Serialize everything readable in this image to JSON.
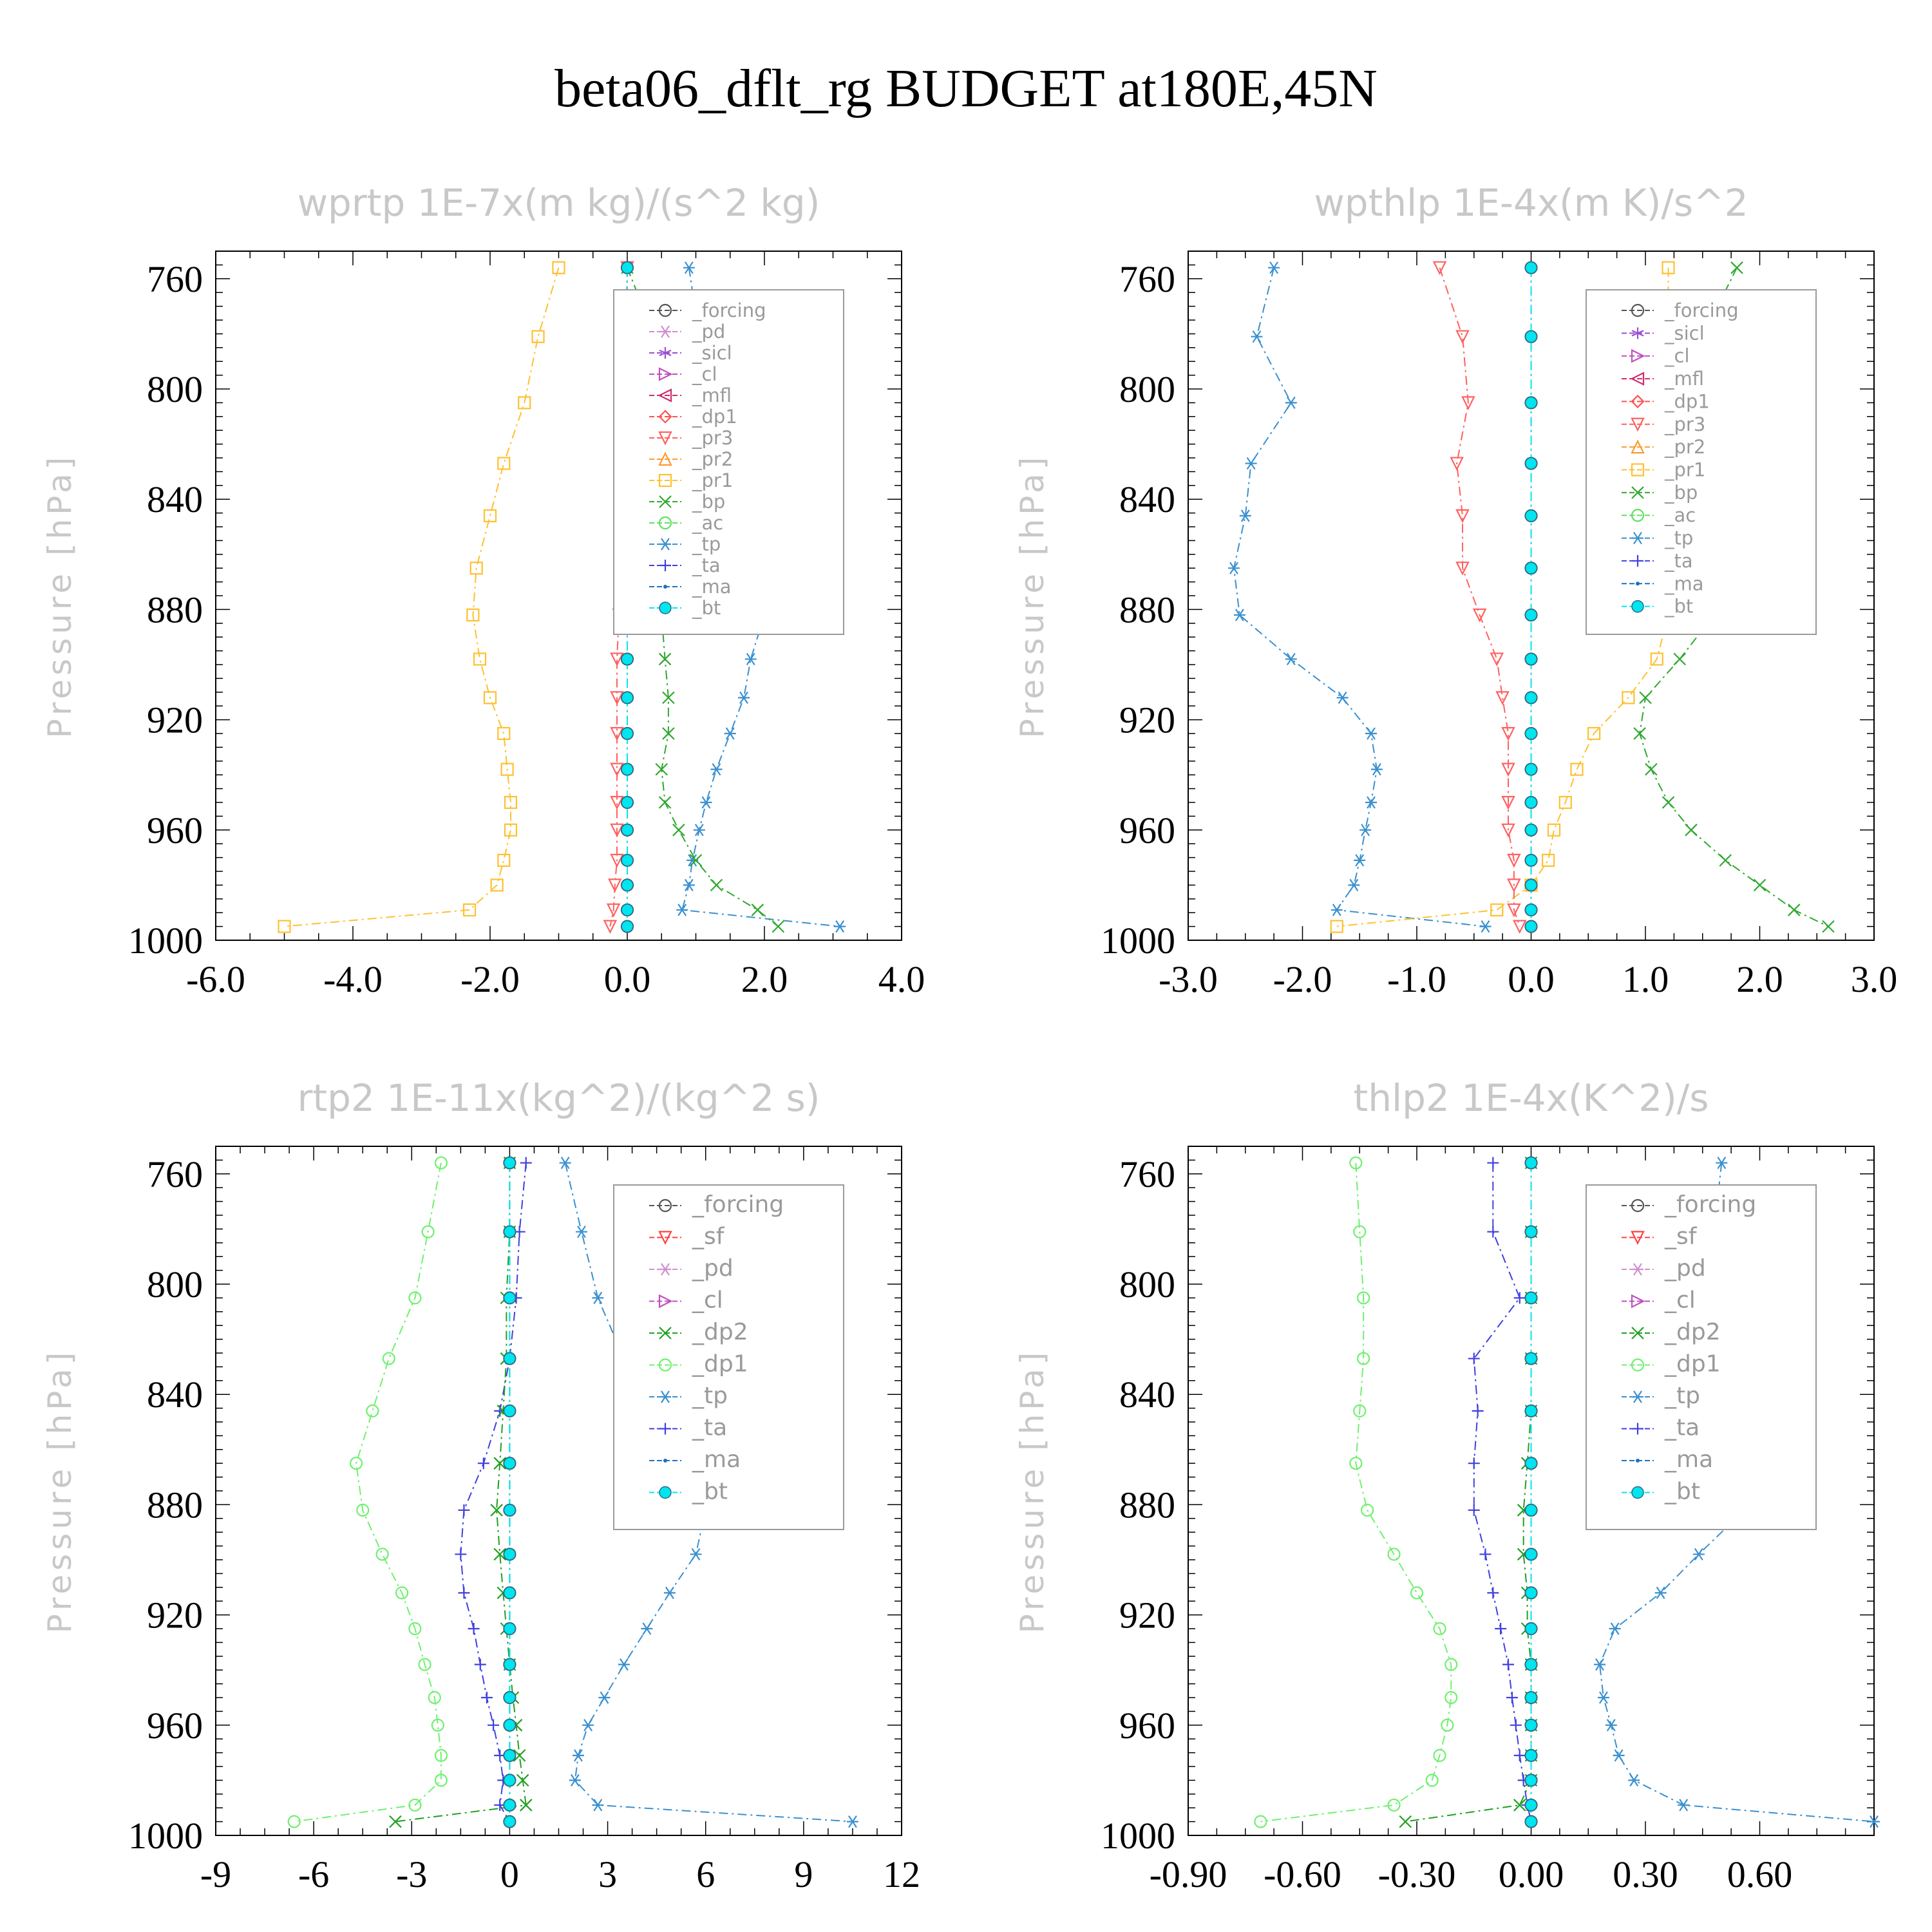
{
  "title": "beta06_dflt_rg  BUDGET at180E,45N",
  "styles": {
    "forcing": {
      "color": "#555555",
      "marker": "circle"
    },
    "pd": {
      "color": "#d08fd0",
      "marker": "asterisk"
    },
    "sicl": {
      "color": "#9a4fd0",
      "marker": "star"
    },
    "cl": {
      "color": "#c050c0",
      "marker": "tri-right"
    },
    "mfl": {
      "color": "#d02a6a",
      "marker": "tri-left"
    },
    "dp1": {
      "color": "#ff5050",
      "marker": "diamond"
    },
    "pr3": {
      "color": "#ff6060",
      "marker": "tri-down"
    },
    "pr2": {
      "color": "#ff9a30",
      "marker": "tri-up"
    },
    "pr1": {
      "color": "#ffc030",
      "marker": "square"
    },
    "bp": {
      "color": "#30a830",
      "marker": "x"
    },
    "ac": {
      "color": "#60e060",
      "marker": "circle"
    },
    "tp": {
      "color": "#3a90d0",
      "marker": "asterisk"
    },
    "ta": {
      "color": "#4040e0",
      "marker": "plus"
    },
    "ma": {
      "color": "#2070c0",
      "marker": "dot"
    },
    "bt": {
      "color": "#00e5ee",
      "marker": "filled"
    },
    "sf": {
      "color": "#ff4040",
      "marker": "tri-down"
    },
    "dp2": {
      "color": "#20a020",
      "marker": "x"
    },
    "dp1b": {
      "color": "#70f070",
      "marker": "circle"
    }
  },
  "chart_data": [
    {
      "type": "line",
      "title": "wprtp   1E-7x(m kg)/(s^2 kg)",
      "ylabel": "Pressure [hPa]",
      "xlim": [
        -6,
        4
      ],
      "xticks": [
        "-6.0",
        "-4.0",
        "-2.0",
        "0.0",
        "2.0",
        "4.0"
      ],
      "ylim": [
        1000,
        750
      ],
      "yticks": [
        760,
        800,
        840,
        880,
        920,
        960,
        1000
      ],
      "y": [
        756,
        781,
        805,
        827,
        846,
        865,
        882,
        898,
        912,
        925,
        938,
        950,
        960,
        971,
        980,
        989,
        995
      ],
      "legend": [
        "_forcing",
        "_pd",
        "_sicl",
        "_cl",
        "_mfl",
        "_dp1",
        "_pr3",
        "_pr2",
        "_pr1",
        "_bp",
        "_ac",
        "_tp",
        "_ta",
        "_ma",
        "_bt"
      ],
      "legend_big": false,
      "series": [
        {
          "name": "_tp",
          "style": "tp",
          "values": [
            0.9,
            1.05,
            1.15,
            1.4,
            1.6,
            1.9,
            2.0,
            1.8,
            1.7,
            1.5,
            1.3,
            1.15,
            1.05,
            0.95,
            0.9,
            0.8,
            3.1
          ]
        },
        {
          "name": "_bp",
          "style": "bp",
          "values": [
            0.0,
            0.4,
            0.35,
            0.45,
            0.3,
            0.35,
            0.5,
            0.55,
            0.6,
            0.6,
            0.5,
            0.55,
            0.75,
            1.0,
            1.3,
            1.9,
            2.2
          ]
        },
        {
          "name": "_pr1",
          "style": "pr1",
          "values": [
            -1.0,
            -1.3,
            -1.5,
            -1.8,
            -2.0,
            -2.2,
            -2.25,
            -2.15,
            -2.0,
            -1.8,
            -1.75,
            -1.7,
            -1.7,
            -1.8,
            -1.9,
            -2.3,
            -5.0
          ]
        },
        {
          "name": "_pr3",
          "style": "pr3",
          "values": [
            0.0,
            -0.02,
            -0.04,
            -0.05,
            -0.08,
            -0.1,
            -0.12,
            -0.15,
            -0.15,
            -0.15,
            -0.15,
            -0.15,
            -0.15,
            -0.15,
            -0.18,
            -0.2,
            -0.25
          ]
        },
        {
          "name": "_ta",
          "style": "ta",
          "values": [
            0.0,
            0.0,
            0.0,
            0.0,
            0.0,
            0.0,
            0.0,
            0.0,
            0.0,
            0.0,
            0.0,
            0.0,
            0.0,
            0.0,
            0.0,
            0.0,
            0.0
          ]
        },
        {
          "name": "_forcing",
          "style": "forcing",
          "values": [
            0.0,
            0.0,
            0.0,
            0.0,
            0.0,
            0.0,
            0.0,
            0.0,
            0.0,
            0.0,
            0.0,
            0.0,
            0.0,
            0.0,
            0.0,
            0.0,
            0.0
          ]
        },
        {
          "name": "_bt",
          "style": "bt",
          "values": [
            0.0,
            0.0,
            0.0,
            0.0,
            0.0,
            0.0,
            0.0,
            0.0,
            0.0,
            0.0,
            0.0,
            0.0,
            0.0,
            0.0,
            0.0,
            0.0,
            0.0
          ]
        }
      ]
    },
    {
      "type": "line",
      "title": "wpthlp   1E-4x(m K)/s^2",
      "ylabel": "Pressure [hPa]",
      "xlim": [
        -3,
        3
      ],
      "xticks": [
        "-3.0",
        "-2.0",
        "-1.0",
        "0.0",
        "1.0",
        "2.0",
        "3.0"
      ],
      "ylim": [
        1000,
        750
      ],
      "yticks": [
        760,
        800,
        840,
        880,
        920,
        960,
        1000
      ],
      "y": [
        756,
        781,
        805,
        827,
        846,
        865,
        882,
        898,
        912,
        925,
        938,
        950,
        960,
        971,
        980,
        989,
        995
      ],
      "legend": [
        "_forcing",
        "_sicl",
        "_cl",
        "_mfl",
        "_dp1",
        "_pr3",
        "_pr2",
        "_pr1",
        "_bp",
        "_ac",
        "_tp",
        "_ta",
        "_ma",
        "_bt"
      ],
      "legend_big": false,
      "series": [
        {
          "name": "_tp",
          "style": "tp",
          "values": [
            -2.25,
            -2.4,
            -2.1,
            -2.45,
            -2.5,
            -2.6,
            -2.55,
            -2.1,
            -1.65,
            -1.4,
            -1.35,
            -1.4,
            -1.45,
            -1.5,
            -1.55,
            -1.7,
            -0.4
          ]
        },
        {
          "name": "_bp",
          "style": "bp",
          "values": [
            1.8,
            1.5,
            1.5,
            1.7,
            1.6,
            1.7,
            1.6,
            1.3,
            1.0,
            0.95,
            1.05,
            1.2,
            1.4,
            1.7,
            2.0,
            2.3,
            2.6
          ]
        },
        {
          "name": "_pr1",
          "style": "pr1",
          "values": [
            1.2,
            1.2,
            1.2,
            1.2,
            1.3,
            1.25,
            1.2,
            1.1,
            0.85,
            0.55,
            0.4,
            0.3,
            0.2,
            0.15,
            0.0,
            -0.3,
            -1.7
          ]
        },
        {
          "name": "_pr3",
          "style": "pr3",
          "values": [
            -0.8,
            -0.6,
            -0.55,
            -0.65,
            -0.6,
            -0.6,
            -0.45,
            -0.3,
            -0.25,
            -0.2,
            -0.2,
            -0.2,
            -0.2,
            -0.15,
            -0.15,
            -0.15,
            -0.1
          ]
        },
        {
          "name": "_ta",
          "style": "ta",
          "values": [
            0.0,
            0.0,
            0.0,
            0.0,
            0.0,
            0.0,
            0.0,
            0.0,
            0.0,
            0.0,
            0.0,
            0.0,
            0.0,
            0.0,
            0.0,
            0.0,
            0.0
          ]
        },
        {
          "name": "_forcing",
          "style": "forcing",
          "values": [
            0.0,
            0.0,
            0.0,
            0.0,
            0.0,
            0.0,
            0.0,
            0.0,
            0.0,
            0.0,
            0.0,
            0.0,
            0.0,
            0.0,
            0.0,
            0.0,
            0.0
          ]
        },
        {
          "name": "_bt",
          "style": "bt",
          "values": [
            0.0,
            0.0,
            0.0,
            0.0,
            0.0,
            0.0,
            0.0,
            0.0,
            0.0,
            0.0,
            0.0,
            0.0,
            0.0,
            0.0,
            0.0,
            0.0,
            0.0
          ]
        }
      ]
    },
    {
      "type": "line",
      "title": "rtp2   1E-11x(kg^2)/(kg^2 s)",
      "ylabel": "Pressure [hPa]",
      "xlim": [
        -9,
        12
      ],
      "xticks": [
        "-9",
        "-6",
        "-3",
        "0",
        "3",
        "6",
        "9",
        "12"
      ],
      "ylim": [
        1000,
        750
      ],
      "yticks": [
        760,
        800,
        840,
        880,
        920,
        960,
        1000
      ],
      "y": [
        756,
        781,
        805,
        827,
        846,
        865,
        882,
        898,
        912,
        925,
        938,
        950,
        960,
        971,
        980,
        989,
        995
      ],
      "legend": [
        "_forcing",
        "_sf",
        "_pd",
        "_cl",
        "_dp2",
        "_dp1",
        "_tp",
        "_ta",
        "_ma",
        "_bt"
      ],
      "legend_big": true,
      "series": [
        {
          "name": "_tp",
          "style": "tp",
          "values": [
            1.7,
            2.2,
            2.7,
            3.5,
            4.6,
            5.8,
            6.0,
            5.7,
            4.9,
            4.2,
            3.5,
            2.9,
            2.4,
            2.1,
            2.0,
            2.7,
            10.5
          ]
        },
        {
          "name": "_dp1",
          "style": "dp1b",
          "values": [
            -2.1,
            -2.5,
            -2.9,
            -3.7,
            -4.2,
            -4.7,
            -4.5,
            -3.9,
            -3.3,
            -2.9,
            -2.6,
            -2.3,
            -2.2,
            -2.1,
            -2.1,
            -2.9,
            -6.6
          ]
        },
        {
          "name": "_ta",
          "style": "ta",
          "values": [
            0.5,
            0.3,
            0.2,
            0.0,
            -0.3,
            -0.8,
            -1.4,
            -1.5,
            -1.4,
            -1.1,
            -0.9,
            -0.7,
            -0.5,
            -0.3,
            -0.2,
            -0.3,
            0.0
          ]
        },
        {
          "name": "_dp2",
          "style": "dp2",
          "values": [
            0.0,
            0.0,
            -0.1,
            -0.1,
            -0.2,
            -0.3,
            -0.4,
            -0.3,
            -0.2,
            -0.1,
            0.0,
            0.1,
            0.2,
            0.3,
            0.4,
            0.5,
            -3.5
          ]
        },
        {
          "name": "_forcing",
          "style": "forcing",
          "values": [
            0.0,
            0.0,
            0.0,
            0.0,
            0.0,
            0.0,
            0.0,
            0.0,
            0.0,
            0.0,
            0.0,
            0.0,
            0.0,
            0.0,
            0.0,
            0.0,
            0.0
          ]
        },
        {
          "name": "_bt",
          "style": "bt",
          "values": [
            0.0,
            0.0,
            0.0,
            0.0,
            0.0,
            0.0,
            0.0,
            0.0,
            0.0,
            0.0,
            0.0,
            0.0,
            0.0,
            0.0,
            0.0,
            0.0,
            0.0
          ]
        }
      ]
    },
    {
      "type": "line",
      "title": "thlp2   1E-4x(K^2)/s",
      "ylabel": "Pressure [hPa]",
      "xlim": [
        -0.9,
        0.9
      ],
      "xticks": [
        "-0.90",
        "-0.60",
        "-0.30",
        "0.00",
        "0.30",
        "0.60"
      ],
      "ylim": [
        1000,
        750
      ],
      "yticks": [
        760,
        800,
        840,
        880,
        920,
        960,
        1000
      ],
      "y": [
        756,
        781,
        805,
        827,
        846,
        865,
        882,
        898,
        912,
        925,
        938,
        950,
        960,
        971,
        980,
        989,
        995
      ],
      "legend": [
        "_forcing",
        "_sf",
        "_pd",
        "_cl",
        "_dp2",
        "_dp1",
        "_tp",
        "_ta",
        "_ma",
        "_bt"
      ],
      "legend_big": true,
      "series": [
        {
          "name": "_tp",
          "style": "tp",
          "values": [
            0.5,
            0.48,
            0.45,
            0.55,
            0.53,
            0.57,
            0.56,
            0.44,
            0.34,
            0.22,
            0.18,
            0.19,
            0.21,
            0.23,
            0.27,
            0.4,
            0.9
          ]
        },
        {
          "name": "_dp1",
          "style": "dp1b",
          "values": [
            -0.46,
            -0.45,
            -0.44,
            -0.44,
            -0.45,
            -0.46,
            -0.43,
            -0.36,
            -0.3,
            -0.24,
            -0.21,
            -0.21,
            -0.22,
            -0.24,
            -0.26,
            -0.36,
            -0.71
          ]
        },
        {
          "name": "_ta",
          "style": "ta",
          "values": [
            -0.1,
            -0.1,
            -0.03,
            -0.15,
            -0.14,
            -0.15,
            -0.15,
            -0.12,
            -0.1,
            -0.08,
            -0.06,
            -0.05,
            -0.04,
            -0.03,
            -0.02,
            -0.01,
            0.0
          ]
        },
        {
          "name": "_dp2",
          "style": "dp2",
          "values": [
            0.0,
            0.0,
            0.0,
            0.0,
            0.0,
            -0.01,
            -0.02,
            -0.02,
            -0.01,
            -0.01,
            0.0,
            0.0,
            0.0,
            0.0,
            0.0,
            -0.03,
            -0.33
          ]
        },
        {
          "name": "_forcing",
          "style": "forcing",
          "values": [
            0.0,
            0.0,
            0.0,
            0.0,
            0.0,
            0.0,
            0.0,
            0.0,
            0.0,
            0.0,
            0.0,
            0.0,
            0.0,
            0.0,
            0.0,
            0.0,
            0.0
          ]
        },
        {
          "name": "_bt",
          "style": "bt",
          "values": [
            0.0,
            0.0,
            0.0,
            0.0,
            0.0,
            0.0,
            0.0,
            0.0,
            0.0,
            0.0,
            0.0,
            0.0,
            0.0,
            0.0,
            0.0,
            0.0,
            0.0
          ]
        }
      ]
    }
  ]
}
